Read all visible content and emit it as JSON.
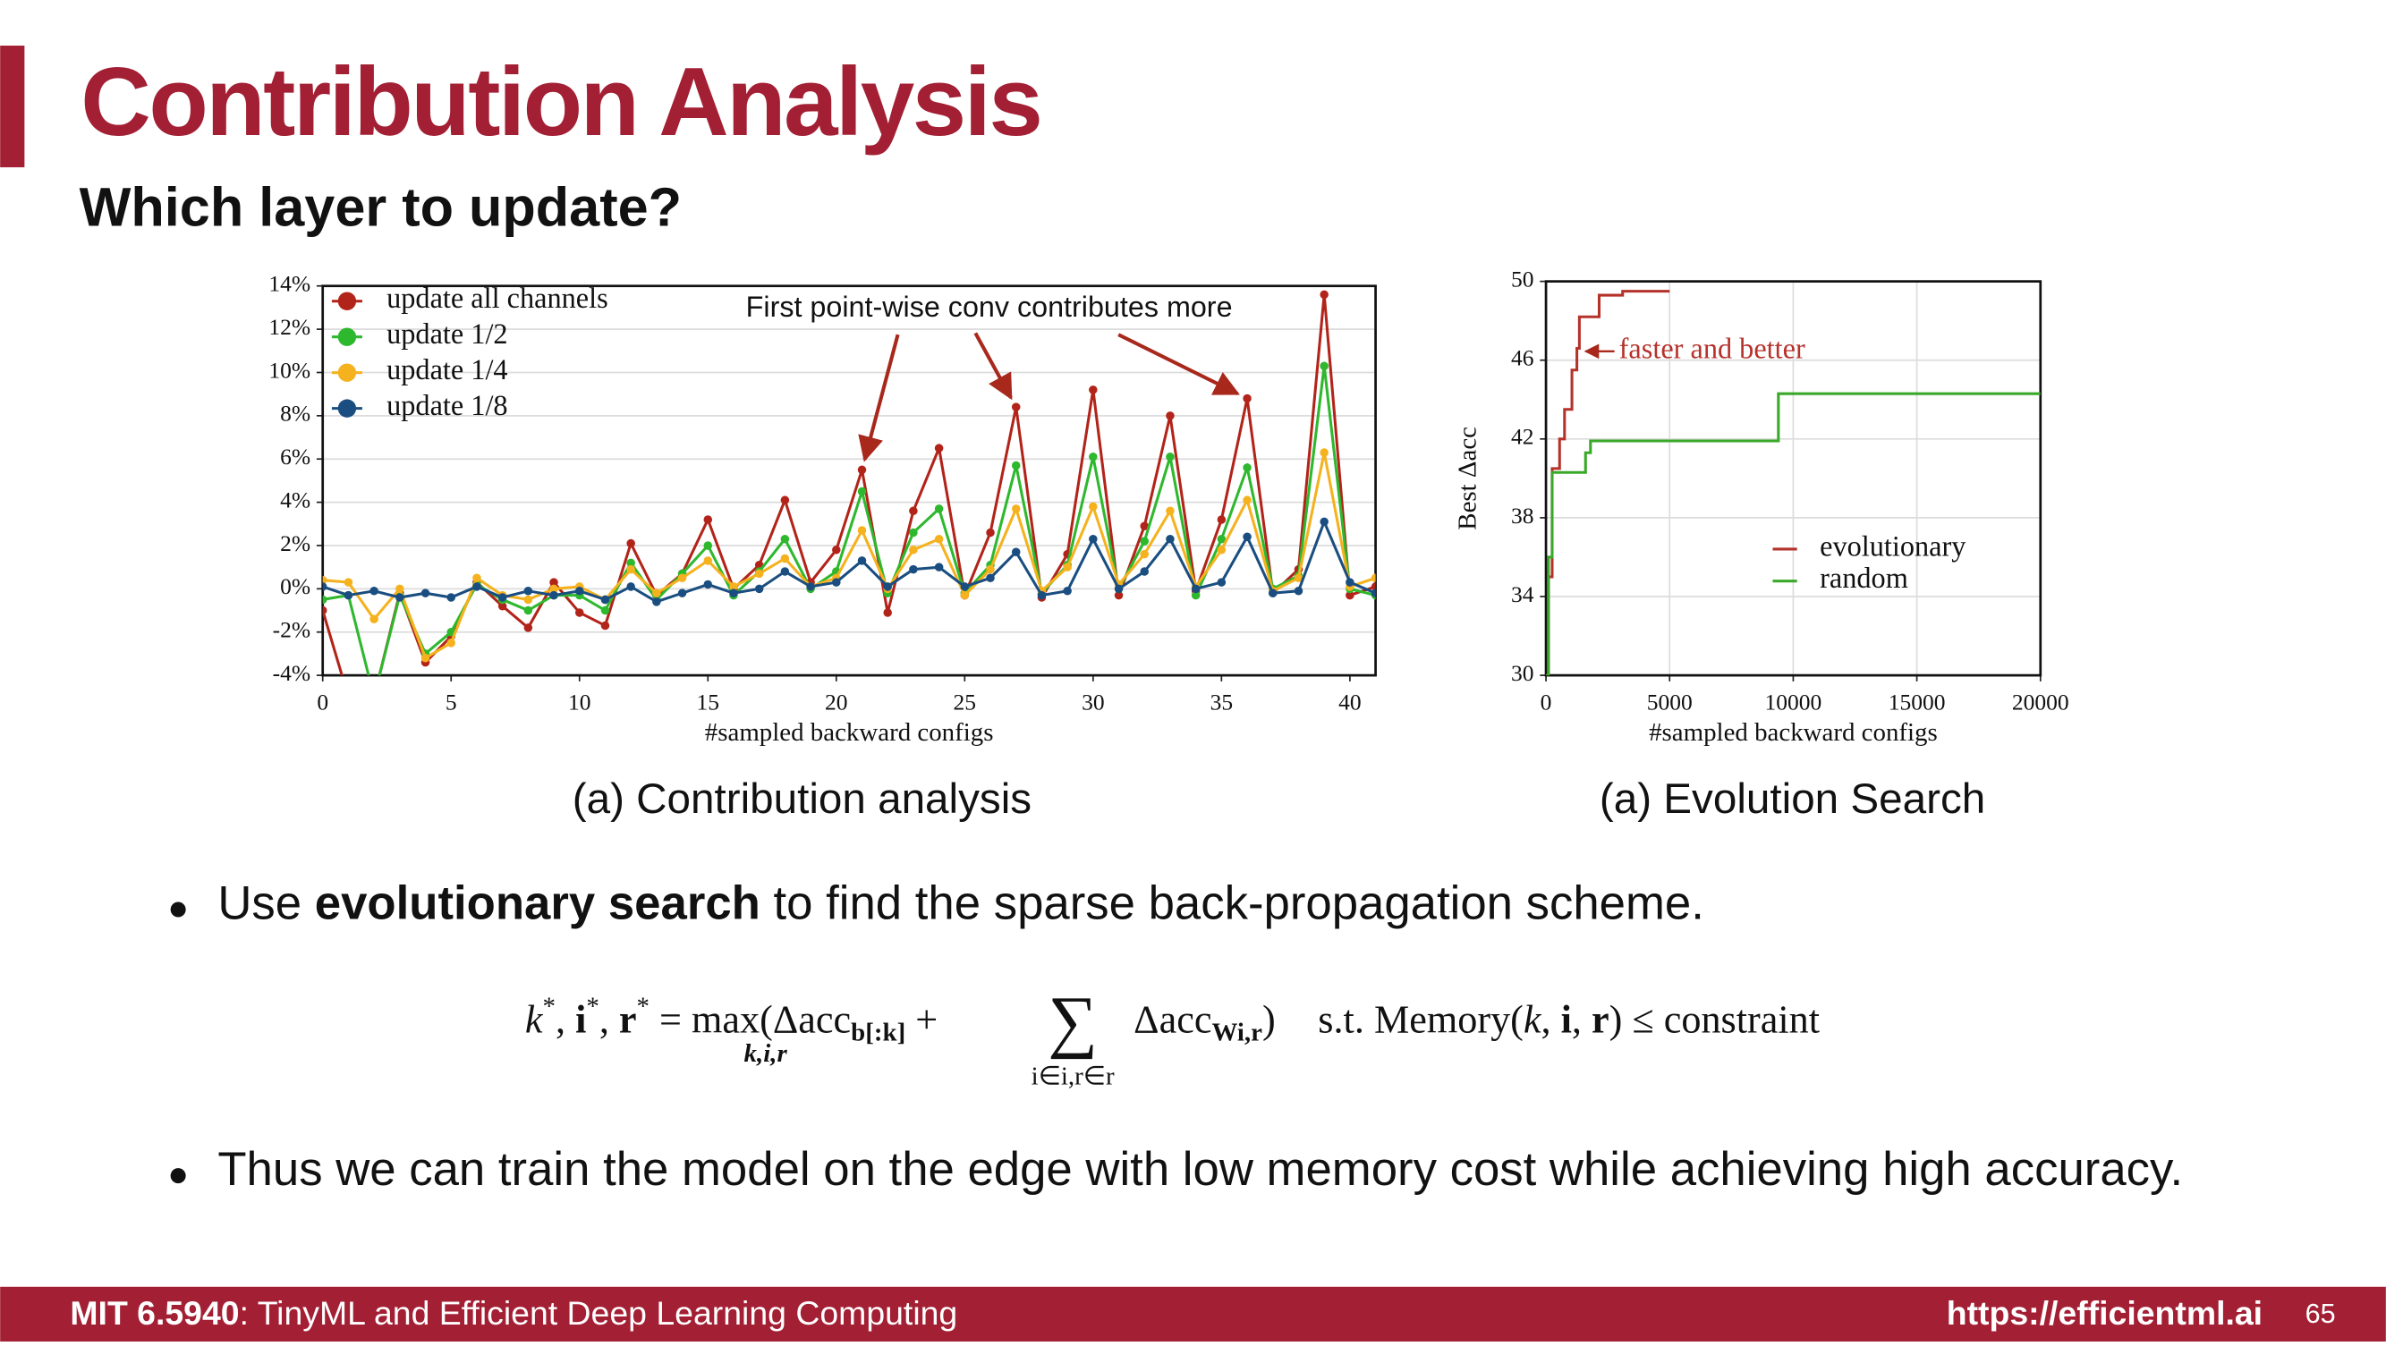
{
  "slide": {
    "title": "Contribution Analysis",
    "subtitle": "Which layer to update?",
    "captions": [
      "(a) Contribution analysis",
      "(a) Evolution Search"
    ],
    "bullets": [
      [
        "Use ",
        "evolutionary search",
        " to find the sparse back-propagation scheme."
      ],
      [
        "Thus we can train the model on the edge with low memory cost while achieving high accuracy."
      ]
    ],
    "formula": [
      "k",
      "*",
      ", ",
      "i",
      "*",
      ", ",
      "r",
      "*",
      " = ",
      "max",
      "(Δacc",
      "b[:k]",
      " + ",
      "k,i,r",
      "∑",
      "i∈i,r∈r",
      "Δacc",
      "Wi,r",
      ")",
      "s.t. Memory(",
      "k",
      ", ",
      "i",
      ", ",
      "r",
      ") ≤ constraint"
    ],
    "footer": {
      "course": "MIT 6.5940",
      "course_name": ": TinyML and Efficient Deep Learning Computing",
      "url": "https://efficientml.ai",
      "page": "65"
    }
  },
  "chart_data": [
    {
      "type": "line",
      "xlabel": "#sampled backward configs",
      "annotation": "First point-wise conv contributes more",
      "x": [
        0,
        1,
        2,
        3,
        4,
        5,
        6,
        7,
        8,
        9,
        10,
        11,
        12,
        13,
        14,
        15,
        16,
        17,
        18,
        19,
        20,
        21,
        22,
        23,
        24,
        25,
        26,
        27,
        28,
        29,
        30,
        31,
        32,
        33,
        34,
        35,
        36,
        37,
        38,
        39,
        40,
        41
      ],
      "xlim": [
        0,
        41
      ],
      "xticks": [
        0,
        5,
        10,
        15,
        20,
        25,
        30,
        35,
        40
      ],
      "ylim": [
        -4,
        14
      ],
      "yticks": [
        {
          "value": -4,
          "label": "-4%"
        },
        {
          "value": -2,
          "label": "-2%"
        },
        {
          "value": 0,
          "label": "0%"
        },
        {
          "value": 2,
          "label": "2%"
        },
        {
          "value": 4,
          "label": "4%"
        },
        {
          "value": 6,
          "label": "6%"
        },
        {
          "value": 8,
          "label": "8%"
        },
        {
          "value": 10,
          "label": "10%"
        },
        {
          "value": 12,
          "label": "12%"
        },
        {
          "value": 14,
          "label": "14%"
        }
      ],
      "grid": "y",
      "markers": true,
      "legend": "upper left",
      "series": [
        {
          "name": "update all channels",
          "color": "#b2241a",
          "values": [
            -1,
            -5,
            -5,
            -0.2,
            -3.4,
            -2.2,
            0.3,
            -0.8,
            -1.8,
            0.3,
            -1.1,
            -1.7,
            2.1,
            -0.3,
            0.7,
            3.2,
            0,
            1.1,
            4.1,
            0.3,
            1.8,
            5.5,
            -1.1,
            3.6,
            6.5,
            -0.3,
            2.6,
            8.4,
            -0.4,
            1.6,
            9.2,
            -0.3,
            2.9,
            8,
            -0.1,
            3.2,
            8.8,
            -0.2,
            0.9,
            13.6,
            -0.3,
            0.1
          ]
        },
        {
          "name": "update 1/2",
          "color": "#2eb82e",
          "values": [
            -0.5,
            -0.3,
            -5,
            -0.3,
            -3,
            -2,
            0.2,
            -0.5,
            -1,
            -0.3,
            -0.3,
            -1,
            1.2,
            -0.5,
            0.7,
            2,
            -0.3,
            0.8,
            2.3,
            0,
            0.8,
            4.5,
            -0.2,
            2.6,
            3.7,
            -0.2,
            1.1,
            5.7,
            -0.2,
            1.1,
            6.1,
            0,
            2.2,
            6.1,
            -0.3,
            2.3,
            5.6,
            0,
            0.6,
            10.3,
            0,
            -0.3
          ]
        },
        {
          "name": "update 1/4",
          "color": "#f5b21e",
          "values": [
            0.4,
            0.3,
            -1.4,
            0,
            -3.2,
            -2.5,
            0.5,
            -0.3,
            -0.5,
            0,
            0.1,
            -0.5,
            0.9,
            -0.2,
            0.5,
            1.3,
            0.1,
            0.7,
            1.4,
            0.1,
            0.5,
            2.7,
            0,
            1.8,
            2.3,
            -0.3,
            0.9,
            3.7,
            -0.1,
            1,
            3.8,
            0.2,
            1.6,
            3.6,
            0.1,
            1.8,
            4.1,
            -0.1,
            0.5,
            6.3,
            0.1,
            0.5
          ]
        },
        {
          "name": "update 1/8",
          "color": "#1a4e80",
          "values": [
            0.1,
            -0.3,
            -0.1,
            -0.4,
            -0.2,
            -0.4,
            0.1,
            -0.4,
            -0.1,
            -0.3,
            -0.1,
            -0.5,
            0.1,
            -0.6,
            -0.2,
            0.2,
            -0.2,
            0,
            0.8,
            0.1,
            0.3,
            1.3,
            0.1,
            0.9,
            1,
            0.1,
            0.5,
            1.7,
            -0.3,
            -0.1,
            2.3,
            0,
            0.8,
            2.3,
            0,
            0.3,
            2.4,
            -0.2,
            -0.1,
            3.1,
            0.3,
            -0.2
          ]
        }
      ]
    },
    {
      "type": "line",
      "line_style": "step",
      "xlabel": "#sampled backward configs",
      "ylabel": "Best Δacc",
      "annotation": "faster and better",
      "xlim": [
        0,
        20000
      ],
      "xticks": [
        0,
        5000,
        10000,
        15000,
        20000
      ],
      "ylim": [
        30,
        50
      ],
      "yticks": [
        30,
        34,
        38,
        42,
        46,
        50
      ],
      "grid": "both",
      "markers": false,
      "legend": "lower right",
      "series": [
        {
          "name": "evolutionary",
          "color": "#b5322b",
          "x": [
            0,
            100,
            250,
            550,
            750,
            1050,
            1250,
            1350,
            2150,
            3100,
            5000
          ],
          "values": [
            30,
            35,
            40.5,
            42,
            43.5,
            45.5,
            46.6,
            48.2,
            49.3,
            49.5,
            49.5
          ]
        },
        {
          "name": "random",
          "color": "#3aa829",
          "x": [
            0,
            100,
            250,
            1500,
            1600,
            1800,
            9400,
            20000
          ],
          "values": [
            30,
            36,
            40.3,
            40.3,
            41.3,
            41.9,
            44.3,
            44.3
          ]
        }
      ]
    }
  ]
}
